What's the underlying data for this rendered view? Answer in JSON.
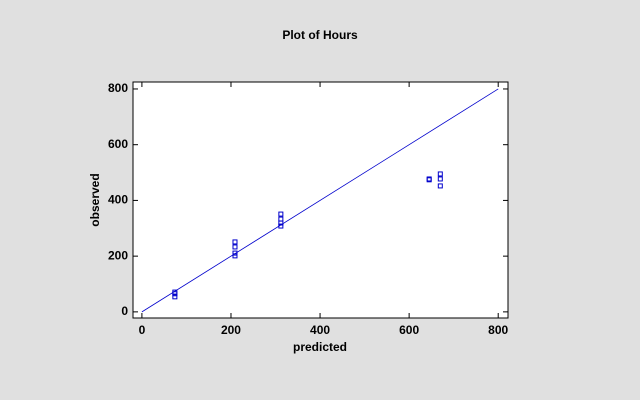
{
  "chart_data": {
    "type": "scatter",
    "title": "Plot of Hours",
    "x_label": "predicted",
    "y_label": "observed",
    "series": [
      {
        "name": "Hours",
        "color": "#0000cc",
        "x": [
          74,
          74,
          74,
          209,
          209,
          209,
          209,
          312,
          312,
          312,
          312,
          645,
          645,
          670,
          670,
          670
        ],
        "values": [
          71,
          65,
          54,
          251,
          233,
          211,
          201,
          351,
          333,
          319,
          308,
          477,
          474,
          495,
          477,
          452
        ]
      }
    ],
    "reference_line": {
      "color": "#0000cc",
      "x": [
        0,
        800
      ],
      "values": [
        0,
        800
      ]
    },
    "xlim": [
      -20,
      822
    ],
    "ylim": [
      -22,
      825
    ],
    "xticks": [
      0,
      200,
      400,
      600,
      800
    ],
    "yticks": [
      0,
      200,
      400,
      600,
      800
    ]
  }
}
